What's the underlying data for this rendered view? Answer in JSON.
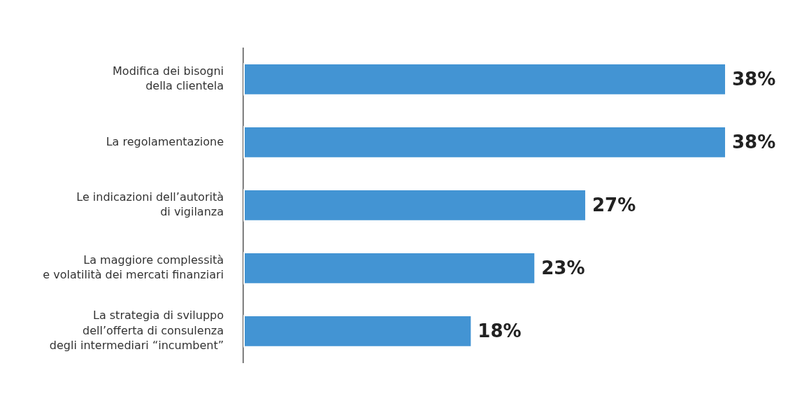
{
  "chart_data": {
    "type": "bar",
    "orientation": "horizontal",
    "categories": [
      "Modifica dei bisogni\ndella clientela",
      "La regolamentazione",
      "Le indicazioni dell’autorità\ndi vigilanza",
      "La maggiore complessità\ne volatilità dei mercati finanziari",
      "La strategia di sviluppo\ndell’offerta di consulenza\ndegli intermediari “incumbent”"
    ],
    "values": [
      38,
      38,
      27,
      23,
      18
    ],
    "value_labels": [
      "38%",
      "38%",
      "27%",
      "23%",
      "18%"
    ],
    "color": "#4394d3",
    "tick_labels": "y",
    "grid": false,
    "legend": false
  }
}
